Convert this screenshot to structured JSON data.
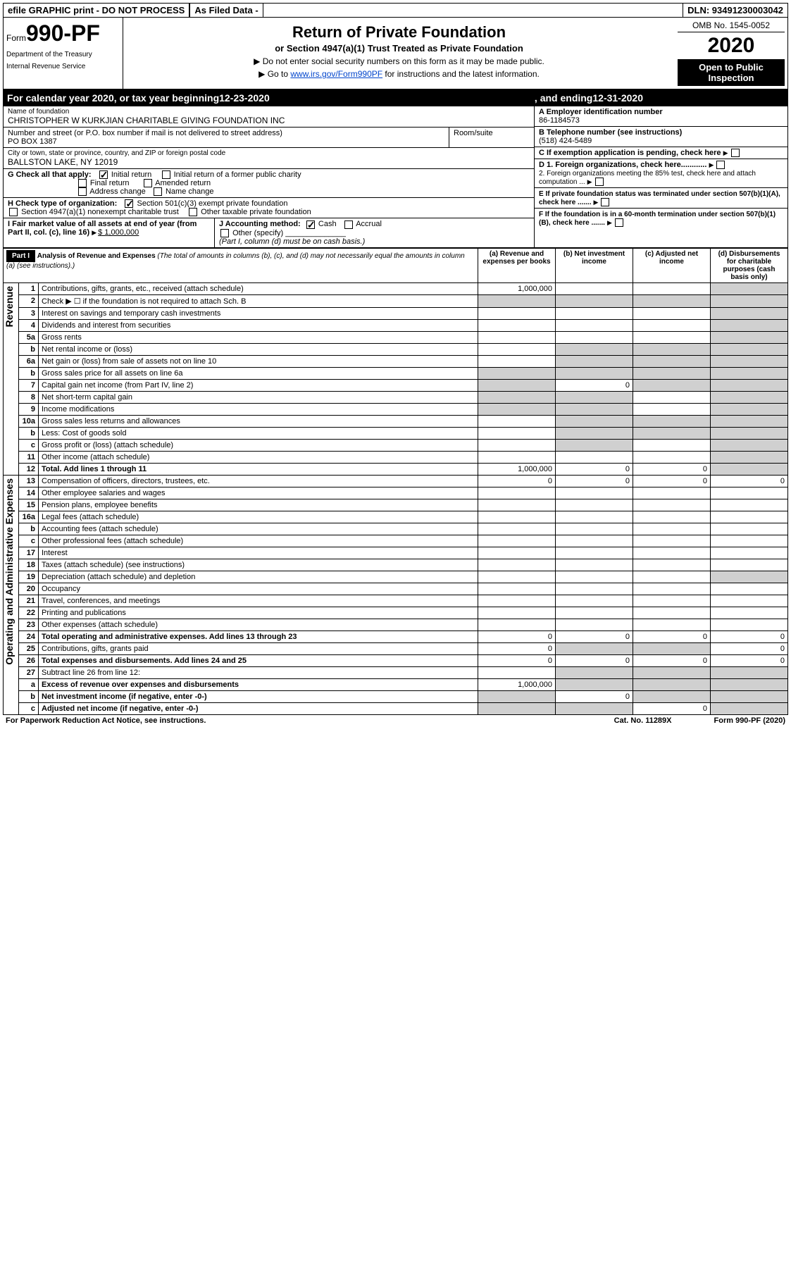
{
  "topbar": {
    "efile_label": "efile GRAPHIC print - DO NOT PROCESS",
    "asfiled_label": "As Filed Data -",
    "dln_label": "DLN: 93491230003042"
  },
  "header": {
    "form_prefix": "Form",
    "form_number": "990-PF",
    "dept1": "Department of the Treasury",
    "dept2": "Internal Revenue Service",
    "title": "Return of Private Foundation",
    "subtitle": "or Section 4947(a)(1) Trust Treated as Private Foundation",
    "note1": "▶ Do not enter social security numbers on this form as it may be made public.",
    "note2_prefix": "▶ Go to ",
    "note2_link": "www.irs.gov/Form990PF",
    "note2_suffix": " for instructions and the latest information.",
    "omb": "OMB No. 1545-0052",
    "year": "2020",
    "inspect": "Open to Public Inspection"
  },
  "calendar": {
    "prefix": "For calendar year 2020, or tax year beginning ",
    "begin": "12-23-2020",
    "mid": ", and ending ",
    "end": "12-31-2020"
  },
  "name_block": {
    "label": "Name of foundation",
    "value": "CHRISTOPHER W KURKJIAN CHARITABLE GIVING FOUNDATION INC",
    "addr_label": "Number and street (or P.O. box number if mail is not delivered to street address)",
    "addr_value": "PO BOX 1387",
    "room_label": "Room/suite",
    "city_label": "City or town, state or province, country, and ZIP or foreign postal code",
    "city_value": "BALLSTON LAKE, NY 12019"
  },
  "right_block": {
    "a_label": "A Employer identification number",
    "a_value": "86-1184573",
    "b_label": "B Telephone number (see instructions)",
    "b_value": "(518) 424-5489",
    "c_label": "C If exemption application is pending, check here",
    "d1_label": "D 1. Foreign organizations, check here............",
    "d2_label": "2. Foreign organizations meeting the 85% test, check here and attach computation ...",
    "e_label": "E If private foundation status was terminated under section 507(b)(1)(A), check here .......",
    "f_label": "F If the foundation is in a 60-month termination under section 507(b)(1)(B), check here ......."
  },
  "g_block": {
    "label": "G Check all that apply:",
    "opts": {
      "initial": "Initial return",
      "initial_former": "Initial return of a former public charity",
      "final": "Final return",
      "amended": "Amended return",
      "addr_change": "Address change",
      "name_change": "Name change"
    }
  },
  "h_block": {
    "label": "H Check type of organization:",
    "opt1": "Section 501(c)(3) exempt private foundation",
    "opt2": "Section 4947(a)(1) nonexempt charitable trust",
    "opt3": "Other taxable private foundation"
  },
  "i_block": {
    "label": "I Fair market value of all assets at end of year (from Part II, col. (c), line 16)",
    "value": "$ 1,000,000"
  },
  "j_block": {
    "label": "J Accounting method:",
    "cash": "Cash",
    "accrual": "Accrual",
    "other": "Other (specify)",
    "note": "(Part I, column (d) must be on cash basis.)"
  },
  "part1": {
    "header": "Part I",
    "title": "Analysis of Revenue and Expenses",
    "title_note": "(The total of amounts in columns (b), (c), and (d) may not necessarily equal the amounts in column (a) (see instructions).)",
    "cols": {
      "a": "(a) Revenue and expenses per books",
      "b": "(b) Net investment income",
      "c": "(c) Adjusted net income",
      "d": "(d) Disbursements for charitable purposes (cash basis only)"
    }
  },
  "rows": [
    {
      "num": "1",
      "desc": "Contributions, gifts, grants, etc., received (attach schedule)",
      "a": "1,000,000",
      "b": "",
      "c": "",
      "d": "",
      "d_shade": true
    },
    {
      "num": "2",
      "desc": "Check ▶ ☐ if the foundation is not required to attach Sch. B",
      "a": "",
      "b": "",
      "c": "",
      "d": "",
      "all_shade": true
    },
    {
      "num": "3",
      "desc": "Interest on savings and temporary cash investments",
      "a": "",
      "b": "",
      "c": "",
      "d": "",
      "d_shade": true
    },
    {
      "num": "4",
      "desc": "Dividends and interest from securities",
      "a": "",
      "b": "",
      "c": "",
      "d": "",
      "d_shade": true
    },
    {
      "num": "5a",
      "desc": "Gross rents",
      "a": "",
      "b": "",
      "c": "",
      "d": "",
      "d_shade": true
    },
    {
      "num": "b",
      "desc": "Net rental income or (loss)",
      "a": "",
      "b": "",
      "c": "",
      "d": "",
      "bcd_shade": true
    },
    {
      "num": "6a",
      "desc": "Net gain or (loss) from sale of assets not on line 10",
      "a": "",
      "b": "",
      "c": "",
      "d": "",
      "bcd_shade": true
    },
    {
      "num": "b",
      "desc": "Gross sales price for all assets on line 6a",
      "a": "",
      "b": "",
      "c": "",
      "d": "",
      "abcd_shade": true
    },
    {
      "num": "7",
      "desc": "Capital gain net income (from Part IV, line 2)",
      "a": "",
      "b": "0",
      "c": "",
      "d": "",
      "acd_shade": true
    },
    {
      "num": "8",
      "desc": "Net short-term capital gain",
      "a": "",
      "b": "",
      "c": "",
      "d": "",
      "abd_shade": true
    },
    {
      "num": "9",
      "desc": "Income modifications",
      "a": "",
      "b": "",
      "c": "",
      "d": "",
      "abd_shade": true
    },
    {
      "num": "10a",
      "desc": "Gross sales less returns and allowances",
      "a": "",
      "b": "",
      "c": "",
      "d": "",
      "bcd_shade": true
    },
    {
      "num": "b",
      "desc": "Less: Cost of goods sold",
      "a": "",
      "b": "",
      "c": "",
      "d": "",
      "bcd_shade": true
    },
    {
      "num": "c",
      "desc": "Gross profit or (loss) (attach schedule)",
      "a": "",
      "b": "",
      "c": "",
      "d": "",
      "bd_shade": true
    },
    {
      "num": "11",
      "desc": "Other income (attach schedule)",
      "a": "",
      "b": "",
      "c": "",
      "d": "",
      "d_shade": true
    },
    {
      "num": "12",
      "desc": "Total. Add lines 1 through 11",
      "bold": true,
      "a": "1,000,000",
      "b": "0",
      "c": "0",
      "d": "",
      "d_shade": true
    },
    {
      "num": "13",
      "desc": "Compensation of officers, directors, trustees, etc.",
      "a": "0",
      "b": "0",
      "c": "0",
      "d": "0"
    },
    {
      "num": "14",
      "desc": "Other employee salaries and wages",
      "a": "",
      "b": "",
      "c": "",
      "d": ""
    },
    {
      "num": "15",
      "desc": "Pension plans, employee benefits",
      "a": "",
      "b": "",
      "c": "",
      "d": ""
    },
    {
      "num": "16a",
      "desc": "Legal fees (attach schedule)",
      "a": "",
      "b": "",
      "c": "",
      "d": ""
    },
    {
      "num": "b",
      "desc": "Accounting fees (attach schedule)",
      "a": "",
      "b": "",
      "c": "",
      "d": ""
    },
    {
      "num": "c",
      "desc": "Other professional fees (attach schedule)",
      "a": "",
      "b": "",
      "c": "",
      "d": ""
    },
    {
      "num": "17",
      "desc": "Interest",
      "a": "",
      "b": "",
      "c": "",
      "d": ""
    },
    {
      "num": "18",
      "desc": "Taxes (attach schedule) (see instructions)",
      "a": "",
      "b": "",
      "c": "",
      "d": ""
    },
    {
      "num": "19",
      "desc": "Depreciation (attach schedule) and depletion",
      "a": "",
      "b": "",
      "c": "",
      "d": "",
      "d_shade": true
    },
    {
      "num": "20",
      "desc": "Occupancy",
      "a": "",
      "b": "",
      "c": "",
      "d": ""
    },
    {
      "num": "21",
      "desc": "Travel, conferences, and meetings",
      "a": "",
      "b": "",
      "c": "",
      "d": ""
    },
    {
      "num": "22",
      "desc": "Printing and publications",
      "a": "",
      "b": "",
      "c": "",
      "d": ""
    },
    {
      "num": "23",
      "desc": "Other expenses (attach schedule)",
      "a": "",
      "b": "",
      "c": "",
      "d": ""
    },
    {
      "num": "24",
      "desc": "Total operating and administrative expenses. Add lines 13 through 23",
      "bold": true,
      "a": "0",
      "b": "0",
      "c": "0",
      "d": "0"
    },
    {
      "num": "25",
      "desc": "Contributions, gifts, grants paid",
      "a": "0",
      "b": "",
      "c": "",
      "d": "0",
      "bc_shade": true
    },
    {
      "num": "26",
      "desc": "Total expenses and disbursements. Add lines 24 and 25",
      "bold": true,
      "a": "0",
      "b": "0",
      "c": "0",
      "d": "0"
    },
    {
      "num": "27",
      "desc": "Subtract line 26 from line 12:",
      "a": "",
      "b": "",
      "c": "",
      "d": "",
      "bcd_shade": true
    },
    {
      "num": "a",
      "desc": "Excess of revenue over expenses and disbursements",
      "bold": true,
      "a": "1,000,000",
      "b": "",
      "c": "",
      "d": "",
      "bcd_shade": true
    },
    {
      "num": "b",
      "desc": "Net investment income (if negative, enter -0-)",
      "bold": true,
      "a": "",
      "b": "0",
      "c": "",
      "d": "",
      "acd_shade": true
    },
    {
      "num": "c",
      "desc": "Adjusted net income (if negative, enter -0-)",
      "bold": true,
      "a": "",
      "b": "",
      "c": "0",
      "d": "",
      "abd_shade": true
    }
  ],
  "sidebar": {
    "revenue": "Revenue",
    "expenses": "Operating and Administrative Expenses"
  },
  "footer": {
    "left": "For Paperwork Reduction Act Notice, see instructions.",
    "mid": "Cat. No. 11289X",
    "right": "Form 990-PF (2020)"
  }
}
